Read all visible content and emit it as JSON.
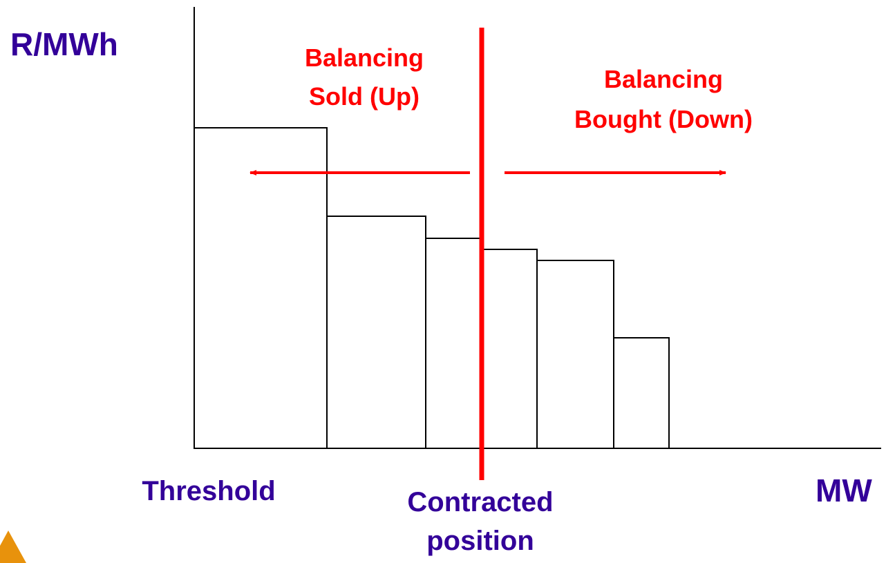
{
  "y_axis_label": "R/MWh",
  "x_axis_label": "MW",
  "threshold_label": "Threshold",
  "contracted_label": [
    "Contracted",
    "position"
  ],
  "sold_label": [
    "Balancing",
    "Sold (Up)"
  ],
  "bought_label": [
    "Balancing",
    "Bought (Down)"
  ]
}
